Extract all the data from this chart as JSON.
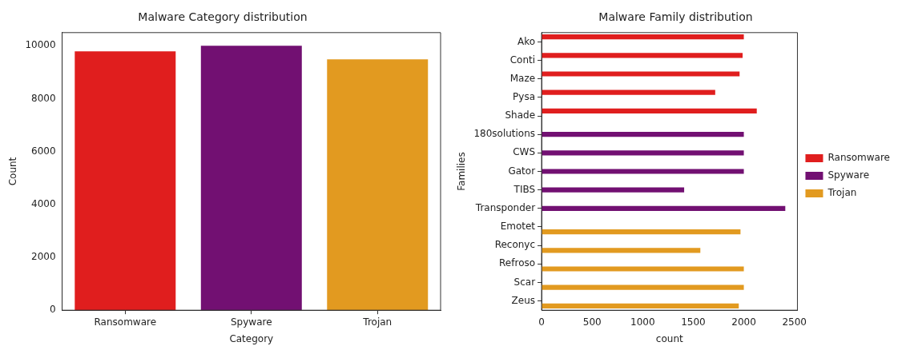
{
  "chart_data": [
    {
      "type": "bar",
      "title": "Malware Category distribution",
      "xlabel": "Category",
      "ylabel": "Count",
      "categories": [
        "Ransomware",
        "Spyware",
        "Trojan"
      ],
      "values": [
        9790,
        10000,
        9490
      ],
      "colors": [
        "#e01e1e",
        "#721072",
        "#e29a20"
      ],
      "ylim": [
        0,
        10500
      ],
      "yticks": [
        0,
        2000,
        4000,
        6000,
        8000,
        10000
      ],
      "grid": false,
      "legend": false
    },
    {
      "type": "bar",
      "orientation": "horizontal",
      "title": "Malware Family distribution",
      "xlabel": "count",
      "ylabel": "Families",
      "categories": [
        "Ako",
        "Conti",
        "Maze",
        "Pysa",
        "Shade",
        "180solutions",
        "CWS",
        "Gator",
        "TIBS",
        "Transponder",
        "Emotet",
        "Reconyc",
        "Refroso",
        "Scar",
        "Zeus"
      ],
      "series": [
        {
          "name": "Ransomware",
          "color": "#e01e1e",
          "values": [
            2000,
            1988,
            1958,
            1717,
            2128,
            null,
            null,
            null,
            null,
            null,
            null,
            null,
            null,
            null,
            null
          ]
        },
        {
          "name": "Spyware",
          "color": "#721072",
          "values": [
            null,
            null,
            null,
            null,
            null,
            2000,
            2000,
            2000,
            1410,
            2410,
            null,
            null,
            null,
            null,
            null
          ]
        },
        {
          "name": "Trojan",
          "color": "#e29a20",
          "values": [
            null,
            null,
            null,
            null,
            null,
            null,
            null,
            null,
            null,
            null,
            1967,
            1570,
            2000,
            2000,
            1950
          ]
        }
      ],
      "xlim": [
        0,
        2530
      ],
      "xticks": [
        0,
        500,
        1000,
        1500,
        2000,
        2500
      ],
      "grid": false,
      "legend": "right"
    }
  ]
}
